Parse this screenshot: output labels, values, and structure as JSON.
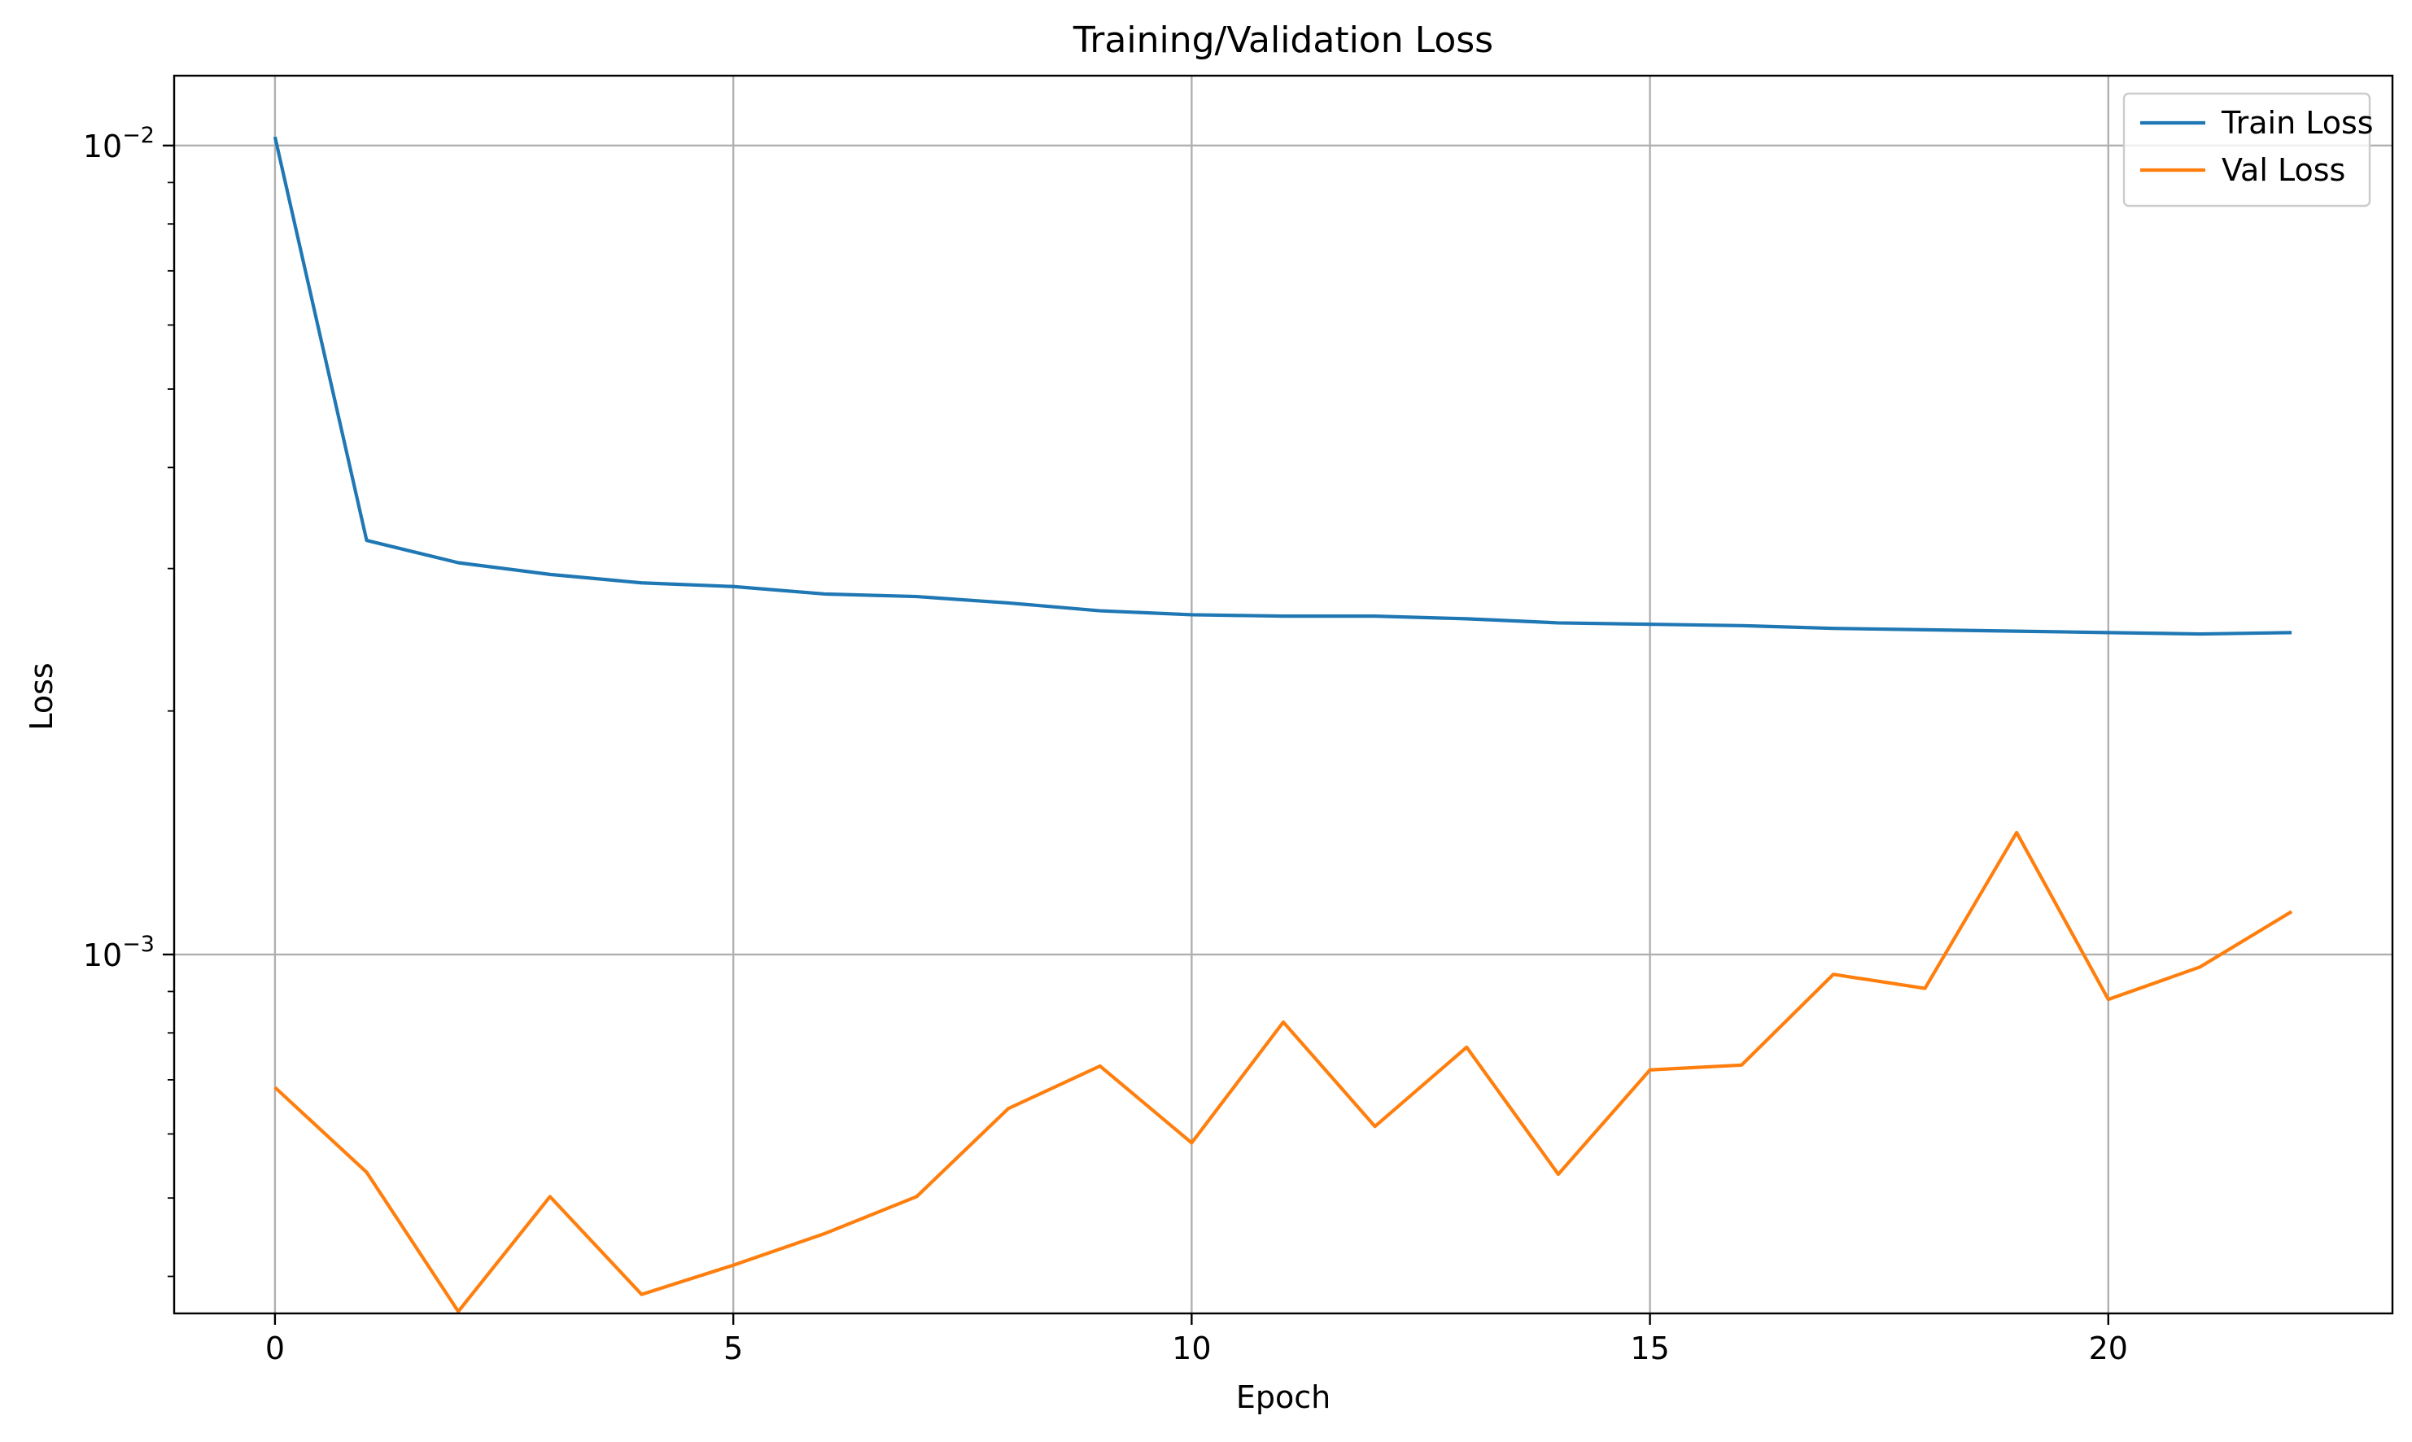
{
  "chart_data": {
    "type": "line",
    "title": "Training/Validation Loss",
    "xlabel": "Epoch",
    "ylabel": "Loss",
    "yscale": "log",
    "xlim": [
      -1.1,
      23.1
    ],
    "ylim": [
      0.00036,
      0.0122
    ],
    "x_ticks": [
      0,
      5,
      10,
      15,
      20
    ],
    "x_tick_labels": [
      "0",
      "5",
      "10",
      "15",
      "20"
    ],
    "y_ticks": [
      {
        "value": 0.01,
        "base": "10",
        "exponent": "−2"
      },
      {
        "value": 0.001,
        "base": "10",
        "exponent": "−3"
      }
    ],
    "grid": true,
    "legend_position": "top-right",
    "x": [
      0,
      1,
      2,
      3,
      4,
      5,
      6,
      7,
      8,
      9,
      10,
      11,
      12,
      13,
      14,
      15,
      16,
      17,
      18,
      19,
      20,
      21,
      22
    ],
    "series": [
      {
        "name": "Train Loss",
        "color": "#1f77b4",
        "values": [
          0.01025,
          0.00325,
          0.00305,
          0.00295,
          0.00288,
          0.00285,
          0.00279,
          0.00277,
          0.00272,
          0.00266,
          0.00263,
          0.00262,
          0.00262,
          0.0026,
          0.00257,
          0.00256,
          0.00255,
          0.00253,
          0.00252,
          0.00251,
          0.0025,
          0.00249,
          0.0025
        ]
      },
      {
        "name": "Val Loss",
        "color": "#ff7f0e",
        "values": [
          0.000685,
          0.000538,
          0.000362,
          0.000502,
          0.00038,
          0.000413,
          0.000452,
          0.000502,
          0.000645,
          0.000728,
          0.000585,
          0.000825,
          0.000613,
          0.000768,
          0.000535,
          0.00072,
          0.00073,
          0.000945,
          0.000908,
          0.001415,
          0.00088,
          0.000965,
          0.00113
        ]
      }
    ]
  }
}
